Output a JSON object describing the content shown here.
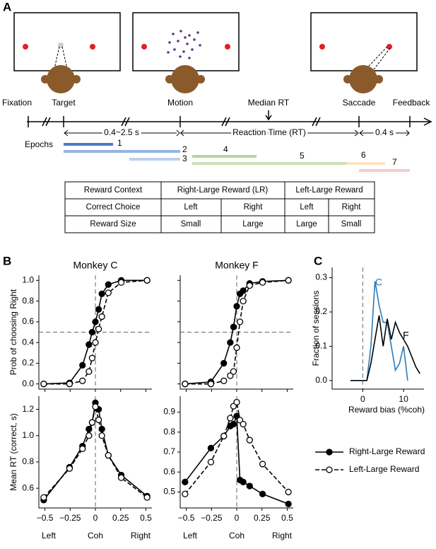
{
  "panel_labels": {
    "a": "A",
    "b": "B",
    "c": "C"
  },
  "panel_a": {
    "events": [
      "Fixation",
      "Target",
      "Motion",
      "Saccade",
      "Feedback"
    ],
    "median_rt": "Median RT",
    "intervals": [
      "0.4~2.5 s",
      "Reaction Time (RT)",
      "0.4 s"
    ],
    "epochs_label": "Epochs",
    "epochs": [
      "1",
      "2",
      "3",
      "4",
      "5",
      "6",
      "7"
    ],
    "table": {
      "rows": [
        [
          "Reward Context",
          "Right-Large Reward (LR)",
          "Left-Large Reward"
        ],
        [
          "Correct Choice",
          "Left",
          "Right",
          "Left",
          "Right"
        ],
        [
          "Reward Size",
          "Small",
          "Large",
          "Large",
          "Small"
        ]
      ]
    }
  },
  "legend": [
    {
      "name": "Right-Large Reward",
      "marker": "filled",
      "dashed": false
    },
    {
      "name": "Left-Large Reward",
      "marker": "hollow",
      "dashed": true
    }
  ],
  "chart_data": [
    {
      "type": "line",
      "title": "Monkey C",
      "ylabel": "Prob of choosing Right",
      "x": [
        -0.512,
        -0.256,
        -0.128,
        -0.064,
        -0.032,
        0,
        0.032,
        0.064,
        0.128,
        0.256,
        0.512
      ],
      "series": [
        {
          "color": "#000000",
          "marker": "filled",
          "dashed": false,
          "values": [
            0.0,
            0.01,
            0.18,
            0.38,
            0.5,
            0.6,
            0.72,
            0.87,
            0.96,
            1.0,
            1.0
          ]
        },
        {
          "color": "#000000",
          "marker": "hollow",
          "dashed": true,
          "values": [
            0.0,
            0.0,
            0.03,
            0.12,
            0.25,
            0.4,
            0.53,
            0.65,
            0.88,
            0.98,
            1.0
          ]
        }
      ],
      "xlim": [
        -0.56,
        0.56
      ],
      "xticks": [
        -0.5,
        -0.25,
        0,
        0.25,
        0.5
      ],
      "xtick_labels": false,
      "ylim": [
        -0.05,
        1.05
      ],
      "yticks": [
        {
          "value": 0,
          "label": "0.0"
        },
        0.2,
        0.4,
        0.6,
        0.8,
        {
          "value": 1,
          "label": "1.0"
        }
      ],
      "vline": 0,
      "hline": 0.5
    },
    {
      "type": "line",
      "title": "Monkey F",
      "x": [
        -0.512,
        -0.256,
        -0.128,
        -0.064,
        -0.032,
        0,
        0.032,
        0.064,
        0.128,
        0.256,
        0.512
      ],
      "series": [
        {
          "color": "#000000",
          "marker": "filled",
          "dashed": false,
          "values": [
            0.0,
            0.02,
            0.2,
            0.4,
            0.55,
            0.75,
            0.87,
            0.9,
            0.97,
            0.99,
            1.0
          ]
        },
        {
          "color": "#000000",
          "marker": "hollow",
          "dashed": true,
          "values": [
            0.0,
            0.0,
            0.03,
            0.08,
            0.12,
            0.35,
            0.6,
            0.8,
            0.95,
            0.98,
            1.0
          ]
        }
      ],
      "xlim": [
        -0.56,
        0.56
      ],
      "xticks": [
        -0.5,
        -0.25,
        0,
        0.25,
        0.5
      ],
      "xtick_labels": false,
      "ylim": [
        -0.05,
        1.05
      ],
      "yticks": [
        0,
        0.2,
        0.4,
        0.6,
        0.8,
        1
      ],
      "ytick_labels": false,
      "vline": 0,
      "hline": 0.5
    },
    {
      "type": "line",
      "ylabel": "Mean RT (correct, s)",
      "xlabel": [
        "Left",
        "Coh",
        "Right"
      ],
      "x": [
        -0.512,
        -0.256,
        -0.128,
        -0.064,
        -0.032,
        0,
        0.032,
        0.064,
        0.128,
        0.256,
        0.512
      ],
      "series": [
        {
          "color": "#000000",
          "marker": "filled",
          "dashed": false,
          "values": [
            0.51,
            0.76,
            0.92,
            1.05,
            1.1,
            1.25,
            1.2,
            1.05,
            0.85,
            0.7,
            0.54
          ]
        },
        {
          "color": "#000000",
          "marker": "hollow",
          "dashed": true,
          "values": [
            0.53,
            0.75,
            0.9,
            1.0,
            1.1,
            1.22,
            1.12,
            1.0,
            0.85,
            0.68,
            0.53
          ]
        }
      ],
      "xlim": [
        -0.56,
        0.56
      ],
      "xticks": [
        {
          "value": -0.5,
          "label": "−0.5"
        },
        {
          "value": -0.25,
          "label": "−0.25"
        },
        0,
        0.25,
        0.5
      ],
      "ylim": [
        0.45,
        1.3
      ],
      "yticks": [
        0.6,
        0.8,
        {
          "value": 1,
          "label": "1.0"
        },
        1.2
      ],
      "vline": 0
    },
    {
      "type": "line",
      "xlabel": [
        "Left",
        "Coh",
        "Right"
      ],
      "x": [
        -0.512,
        -0.256,
        -0.128,
        -0.064,
        -0.032,
        0,
        0.032,
        0.064,
        0.128,
        0.256,
        0.512
      ],
      "series": [
        {
          "color": "#000000",
          "marker": "filled",
          "dashed": false,
          "values": [
            0.55,
            0.72,
            0.78,
            0.83,
            0.84,
            0.88,
            0.56,
            0.55,
            0.53,
            0.49,
            0.44
          ]
        },
        {
          "color": "#000000",
          "marker": "hollow",
          "dashed": true,
          "values": [
            0.49,
            0.65,
            0.78,
            0.87,
            0.93,
            0.95,
            0.86,
            0.84,
            0.76,
            0.64,
            0.5
          ]
        }
      ],
      "xlim": [
        -0.56,
        0.56
      ],
      "xticks": [
        {
          "value": -0.5,
          "label": "−0.5"
        },
        {
          "value": -0.25,
          "label": "−0.25"
        },
        0,
        0.25,
        0.5
      ],
      "ylim": [
        0.42,
        0.98
      ],
      "yticks": [
        0.5,
        0.6,
        0.7,
        0.8,
        0.9
      ],
      "vline": 0
    },
    {
      "type": "line",
      "ylabel": "Fraction of sessions",
      "xlabel": [
        "Reward bias (%coh)"
      ],
      "x": [
        -3,
        -2,
        -1,
        0,
        1,
        2,
        3,
        4,
        5,
        6,
        7,
        8,
        9,
        10,
        11,
        12,
        13,
        14
      ],
      "series": [
        {
          "name": "C",
          "color": "#2b7bb9",
          "marker": "none",
          "dashed": false,
          "values": [
            0,
            0,
            0,
            0,
            0,
            0.1,
            0.29,
            0.22,
            0.17,
            0.17,
            0.1,
            0.03,
            0.05,
            0.1,
            0,
            null,
            null,
            null
          ]
        },
        {
          "name": "F",
          "color": "#000000",
          "marker": "none",
          "dashed": false,
          "values": [
            0,
            0,
            0,
            0,
            0,
            0.05,
            0.12,
            0.19,
            0.1,
            0.18,
            0.12,
            0.17,
            0.14,
            0.12,
            0.1,
            0.07,
            0.04,
            0.02
          ]
        }
      ],
      "xlim": [
        -7.5,
        15
      ],
      "xticks": [
        0,
        10
      ],
      "ylim": [
        -0.025,
        0.33
      ],
      "yticks": [
        {
          "value": 0,
          "label": "0.0"
        },
        0.1,
        0.2,
        0.3
      ],
      "vline": 0
    }
  ]
}
